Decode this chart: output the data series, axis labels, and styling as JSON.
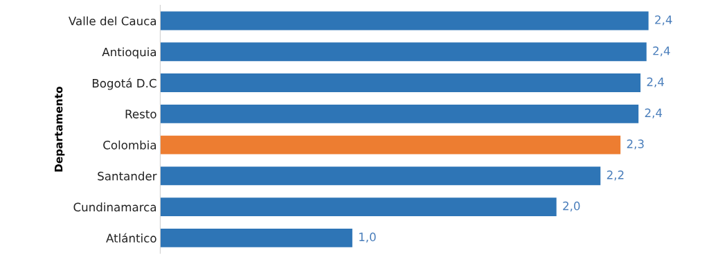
{
  "chart_data": {
    "type": "bar",
    "orientation": "horizontal",
    "ylabel": "Departamento",
    "categories": [
      "Valle del Cauca",
      "Antioquia",
      "Bogotá D.C",
      "Resto",
      "Colombia",
      "Santander",
      "Cundinamarca",
      "Atlántico"
    ],
    "values": [
      2.44,
      2.43,
      2.4,
      2.39,
      2.3,
      2.2,
      1.98,
      0.96
    ],
    "value_labels": [
      "2,4",
      "2,4",
      "2,4",
      "2,4",
      "2,3",
      "2,2",
      "2,0",
      "1,0"
    ],
    "colors": [
      "#2e75b6",
      "#2e75b6",
      "#2e75b6",
      "#2e75b6",
      "#ed7d31",
      "#2e75b6",
      "#2e75b6",
      "#2e75b6"
    ],
    "data_labels": false
  }
}
